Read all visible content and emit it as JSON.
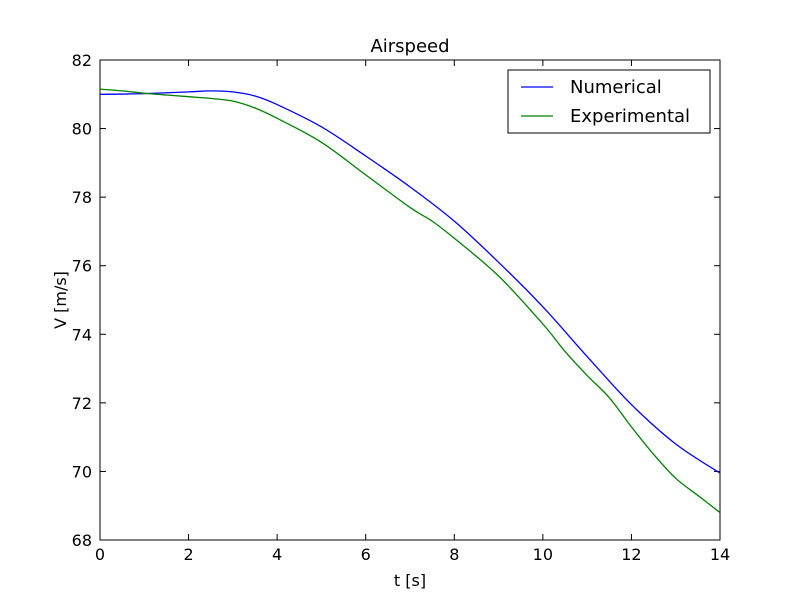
{
  "chart_data": {
    "type": "line",
    "title": "Airspeed",
    "xlabel": "t [s]",
    "ylabel": "V [m/s]",
    "xlim": [
      0,
      14
    ],
    "ylim": [
      68,
      82
    ],
    "x_ticks": [
      "0",
      "2",
      "4",
      "6",
      "8",
      "10",
      "12",
      "14"
    ],
    "y_ticks": [
      "68",
      "70",
      "72",
      "74",
      "76",
      "78",
      "80",
      "82"
    ],
    "x_tick_values": [
      0,
      2,
      4,
      6,
      8,
      10,
      12,
      14
    ],
    "y_tick_values": [
      68,
      70,
      72,
      74,
      76,
      78,
      80,
      82
    ],
    "grid": false,
    "legend_position": "top-right",
    "series": [
      {
        "name": "Numerical",
        "color": "#0000ff",
        "x": [
          0,
          1,
          2,
          2.5,
          3,
          3.5,
          4,
          5,
          6,
          7,
          8,
          9,
          10,
          11,
          12,
          13,
          14
        ],
        "y": [
          81.0,
          81.02,
          81.07,
          81.1,
          81.07,
          80.95,
          80.7,
          80.05,
          79.2,
          78.3,
          77.3,
          76.1,
          74.8,
          73.35,
          71.95,
          70.8,
          69.95
        ]
      },
      {
        "name": "Experimental",
        "color": "#008000",
        "x": [
          0,
          0.5,
          1,
          1.5,
          2,
          2.5,
          3,
          3.5,
          4,
          5,
          6,
          7,
          7.5,
          8,
          9,
          10,
          10.5,
          11,
          11.5,
          12,
          12.5,
          13,
          13.5,
          14
        ],
        "y": [
          81.15,
          81.1,
          81.03,
          80.98,
          80.93,
          80.88,
          80.8,
          80.6,
          80.3,
          79.6,
          78.65,
          77.7,
          77.3,
          76.8,
          75.7,
          74.3,
          73.5,
          72.8,
          72.15,
          71.3,
          70.5,
          69.8,
          69.3,
          68.8
        ]
      }
    ]
  }
}
